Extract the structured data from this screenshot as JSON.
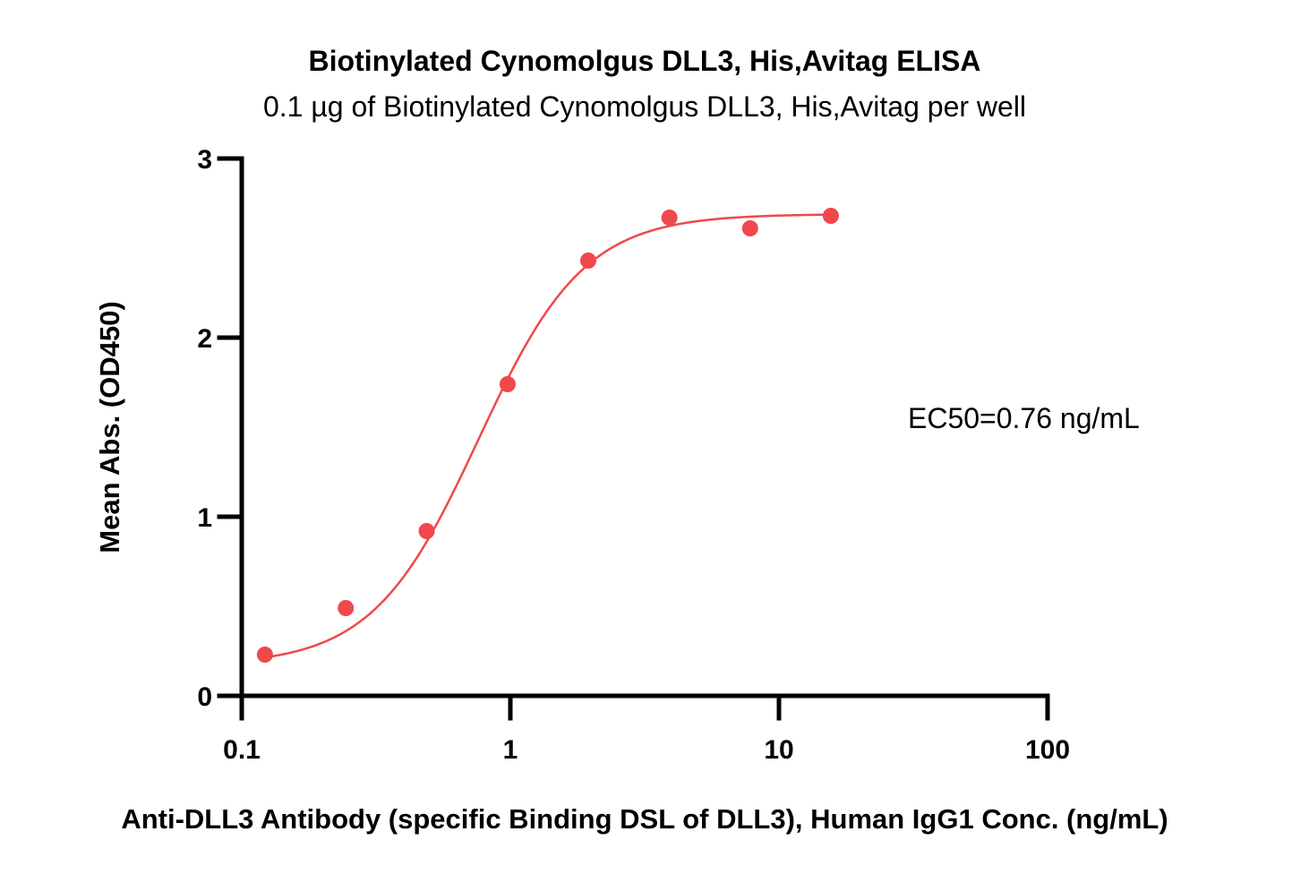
{
  "chart_data": {
    "type": "scatter",
    "title": "Biotinylated Cynomolgus DLL3, His,Avitag ELISA",
    "subtitle": "0.1 µg of Biotinylated Cynomolgus DLL3, His,Avitag per well",
    "xlabel": "Anti-DLL3 Antibody (specific Binding DSL of DLL3), Human IgG1 Conc. (ng/mL)",
    "ylabel": "Mean Abs. (OD450)",
    "x_scale": "log",
    "xlim": [
      0.1,
      100
    ],
    "ylim": [
      0,
      3
    ],
    "x_ticks": [
      0.1,
      1,
      10,
      100
    ],
    "x_tick_labels": [
      "0.1",
      "1",
      "10",
      "100"
    ],
    "y_ticks": [
      0,
      1,
      2,
      3
    ],
    "y_tick_labels": [
      "0",
      "1",
      "2",
      "3"
    ],
    "grid": false,
    "color": "#f0484c",
    "series": [
      {
        "x": [
          0.122,
          0.244,
          0.488,
          0.977,
          1.95,
          3.91,
          7.81,
          15.6
        ],
        "y": [
          0.23,
          0.49,
          0.92,
          1.74,
          2.43,
          2.67,
          2.61,
          2.68
        ]
      }
    ],
    "fit_curve": {
      "model": "4PL",
      "bottom": 0.17,
      "top": 2.69,
      "ec50": 0.76,
      "hill_slope": 2.2,
      "x_range": [
        0.122,
        15.6
      ]
    },
    "annotation": "EC50=0.76 ng/mL"
  }
}
